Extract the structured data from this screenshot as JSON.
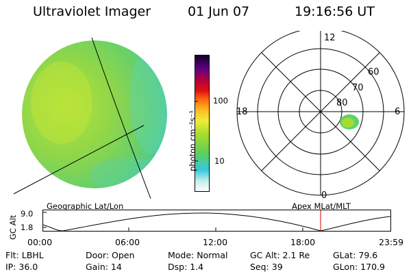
{
  "header": {
    "instrument": "Ultraviolet Imager",
    "date": "01 Jun 07",
    "time": "19:16:56 UT"
  },
  "colorbar": {
    "label": "photon cm⁻²s⁻¹",
    "ticks": [
      "100",
      "10"
    ]
  },
  "polar": {
    "mlt_labels": {
      "top": "12",
      "left": "18",
      "right": "6",
      "bottom": "0"
    },
    "lat_labels": [
      "60",
      "70",
      "80"
    ]
  },
  "timeline": {
    "ylabel": "GC Alt",
    "yticks": [
      "9.0",
      "1.8"
    ],
    "left_title": "Geographic Lat/Lon",
    "right_title": "Apex MLat/MLT",
    "xticks": [
      "00:00",
      "06:00",
      "12:00",
      "18:00",
      "23:59"
    ],
    "marker_color": "#cc0000"
  },
  "status": {
    "row1": {
      "flt": "Flt: LBHL",
      "door": "Door: Open",
      "mode": "Mode: Normal",
      "gcalt": "GC Alt: 2.1 Re",
      "glat": "GLat:  79.6"
    },
    "row2": {
      "ip": "IP: 36.0",
      "gain": "Gain: 14",
      "dsp": "Dsp:    1.4",
      "seq": "Seq: 39",
      "glon": "GLon: 170.9"
    }
  }
}
